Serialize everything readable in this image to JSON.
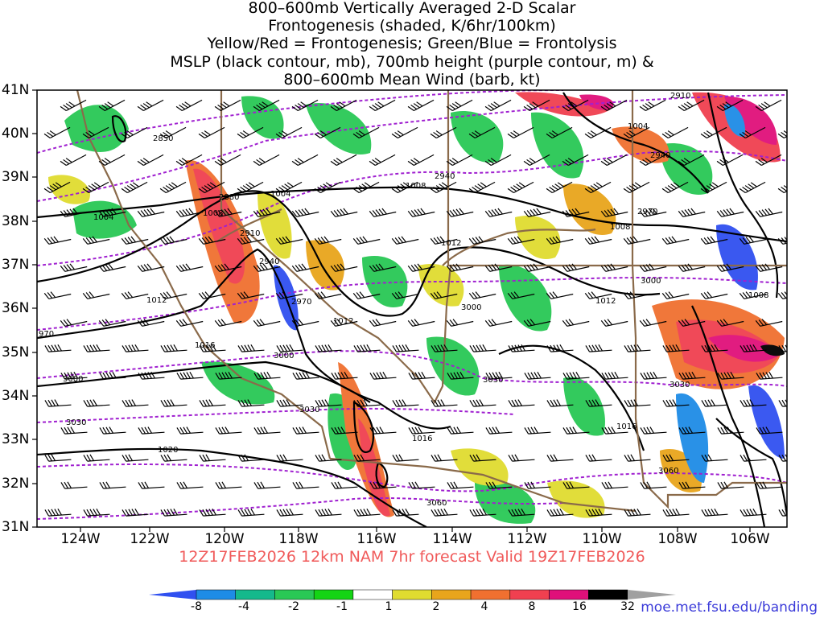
{
  "title_lines": [
    "800–600mb Vertically Averaged 2-D Scalar",
    "Frontogenesis (shaded, K/6hr/100km)",
    "Yellow/Red = Frontogenesis;  Green/Blue = Frontolysis",
    "MSLP (black contour, mb), 700mb height (purple contour, m) &",
    "800–600mb Mean Wind (barb, kt)"
  ],
  "lat_labels": [
    "41N",
    "40N",
    "39N",
    "38N",
    "37N",
    "36N",
    "35N",
    "34N",
    "33N",
    "32N",
    "31N"
  ],
  "lon_labels": [
    "124W",
    "122W",
    "120W",
    "118W",
    "116W",
    "114W",
    "112W",
    "110W",
    "108W",
    "106W"
  ],
  "run_info": "12Z17FEB2026 12km NAM 7hr forecast Valid 19Z17FEB2026",
  "colorbar": {
    "labels": [
      "-8",
      "-4",
      "-2",
      "-1",
      "1",
      "2",
      "4",
      "8",
      "16",
      "32"
    ],
    "colors": [
      "#3050f0",
      "#1e8ce6",
      "#15b98c",
      "#29c855",
      "#14d414",
      "#ffffff",
      "#e0dc30",
      "#e8a51c",
      "#f07030",
      "#f04050",
      "#e0107a",
      "#000000",
      "#a0a0a0"
    ]
  },
  "contour_labels": {
    "mslp": [
      "1004",
      "1008",
      "1004",
      "1008",
      "1012",
      "1012",
      "1012",
      "1016",
      "1016",
      "1016",
      "1020",
      "1004",
      "1008",
      "1012",
      "1008"
    ],
    "height": [
      "2850",
      "2880",
      "2910",
      "2940",
      "2970",
      "3000",
      "3000",
      "3030",
      "3030",
      "3060",
      "3060",
      "2910",
      "2940",
      "2940",
      "2970",
      "3000",
      "3030",
      "970",
      "3000",
      "3030"
    ]
  },
  "credit": "moe.met.fsu.edu/banding"
}
